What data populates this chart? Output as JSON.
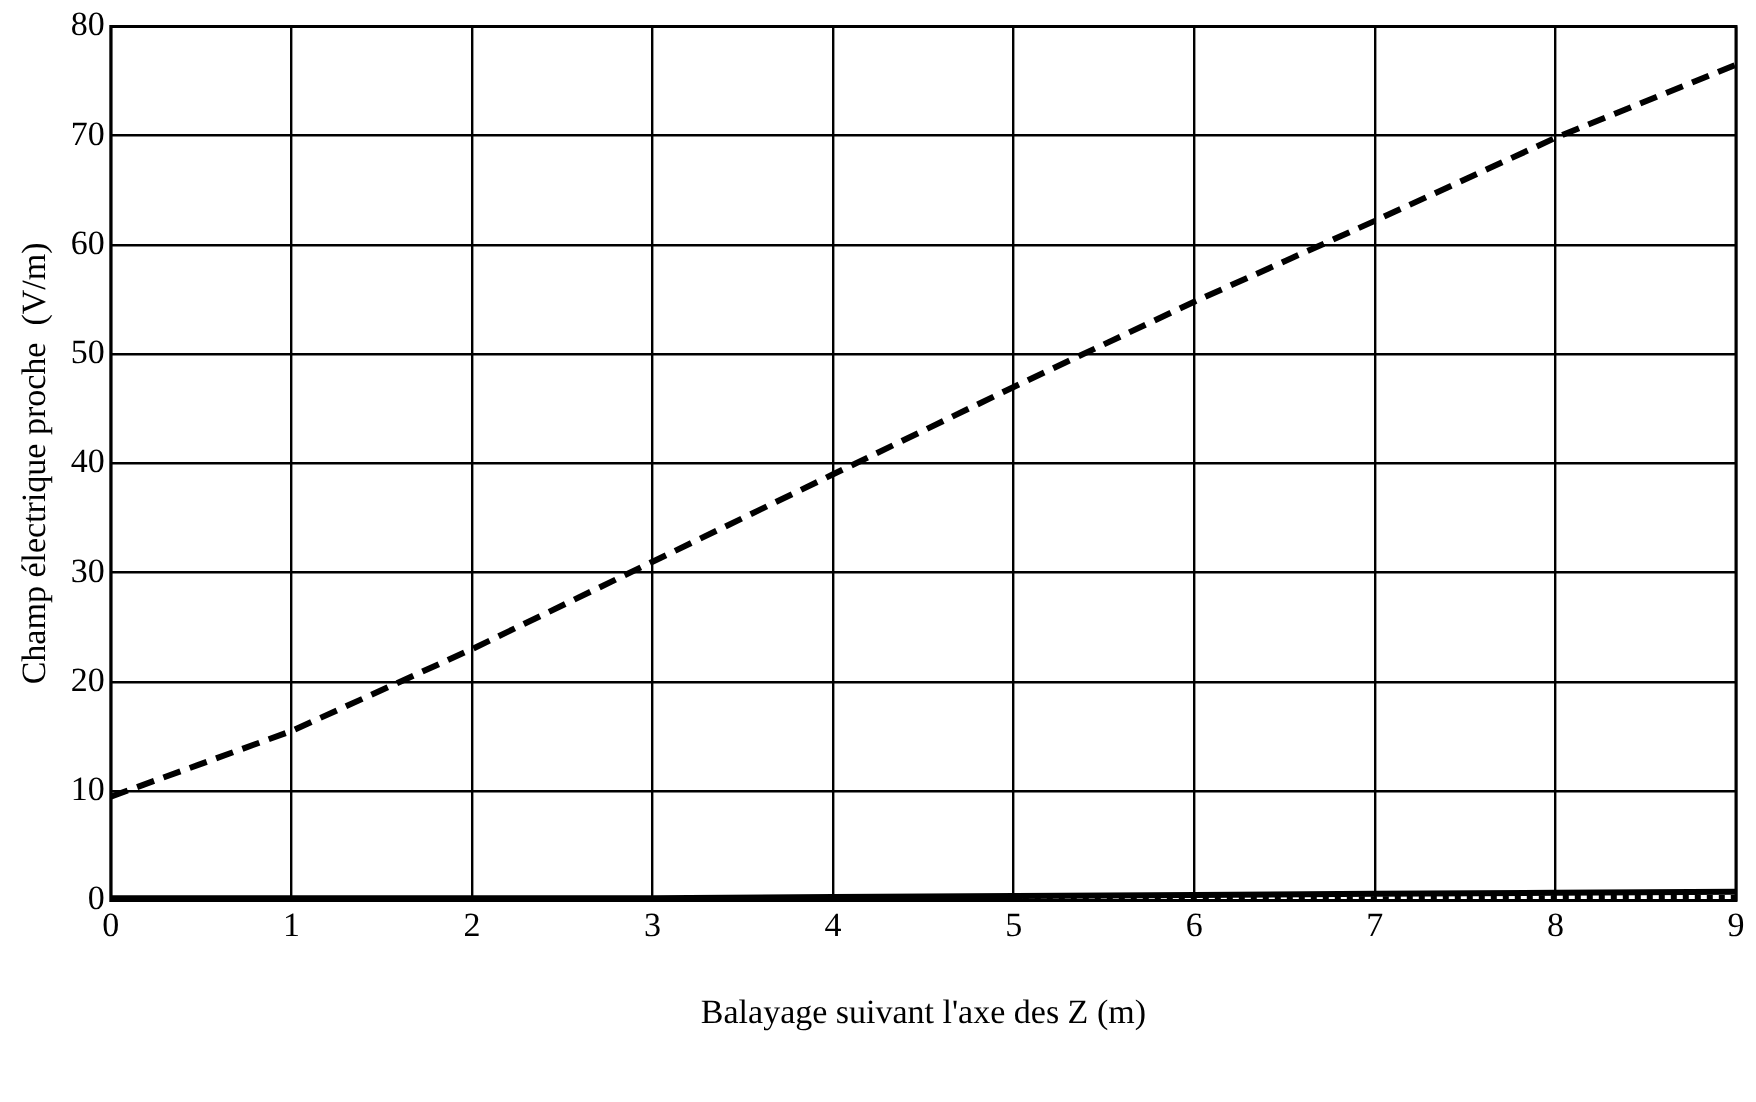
{
  "chart_data": {
    "type": "line",
    "xlabel": "Balayage suivant l'axe des Z (m)",
    "ylabel": "Champ électrique proche  (V/m)",
    "x": [
      0,
      1,
      2,
      3,
      4,
      5,
      6,
      7,
      8,
      9
    ],
    "series": [
      {
        "color": "#000000",
        "line_style": "dashed",
        "values": [
          9.5,
          15.5,
          23,
          31,
          39,
          47,
          54.8,
          62.2,
          69.8,
          76.5
        ]
      },
      {
        "color": "#000000",
        "line_style": "solid",
        "values": [
          0.2,
          0.2,
          0.2,
          0.2,
          0.3,
          0.4,
          0.5,
          0.6,
          0.7,
          0.8
        ]
      },
      {
        "color": "#000000",
        "line_style": "dotted",
        "values": [
          0.1,
          0.1,
          0.1,
          0.1,
          0.1,
          0.2,
          0.2,
          0.2,
          0.3,
          0.3
        ]
      }
    ],
    "xlim": [
      0,
      9
    ],
    "ylim": [
      0,
      80
    ],
    "xticks": [
      0,
      1,
      2,
      3,
      4,
      5,
      6,
      7,
      8,
      9
    ],
    "yticks": [
      0,
      10,
      20,
      30,
      40,
      50,
      60,
      70,
      80
    ],
    "grid": true,
    "marker": "none"
  }
}
